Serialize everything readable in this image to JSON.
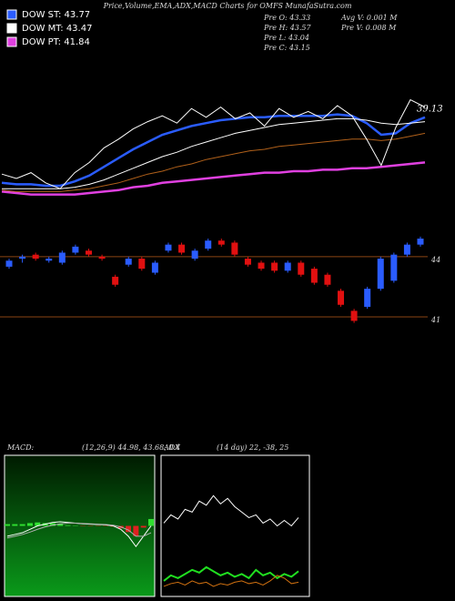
{
  "chart_data": [
    {
      "type": "line",
      "title": "Price,Volume,EMA,ADX,MACD Charts for OMFS MunafaSutra.com",
      "annotations": [
        "Pre O: 43.33",
        "Pre H: 43.57",
        "Pre L: 43.04",
        "Pre C: 43.15",
        "Avg V: 0.001 M",
        "Pre V: 0.008 M",
        "39.13"
      ],
      "ylim": [
        36,
        46
      ],
      "series": [
        {
          "name": "DOW ST: 43.77",
          "color": "#2a5cff",
          "values": [
            37.2,
            37.1,
            37.1,
            37.0,
            37.0,
            37.3,
            37.7,
            38.3,
            38.9,
            39.5,
            40.0,
            40.5,
            40.8,
            41.1,
            41.3,
            41.5,
            41.6,
            41.7,
            41.7,
            41.8,
            41.8,
            41.8,
            41.8,
            41.9,
            41.8,
            41.3,
            40.5,
            40.6,
            41.3,
            41.7
          ]
        },
        {
          "name": "DOW MT: 43.47",
          "color": "#ffffff",
          "values": [
            36.8,
            36.8,
            36.8,
            36.8,
            36.8,
            36.9,
            37.1,
            37.4,
            37.8,
            38.2,
            38.6,
            39.0,
            39.3,
            39.7,
            40.0,
            40.3,
            40.6,
            40.8,
            41.0,
            41.2,
            41.3,
            41.4,
            41.5,
            41.6,
            41.6,
            41.5,
            41.3,
            41.2,
            41.3,
            41.4
          ]
        },
        {
          "name": "DOW PT: 41.84",
          "color": "#e040e0",
          "values": [
            36.6,
            36.5,
            36.4,
            36.4,
            36.4,
            36.4,
            36.5,
            36.6,
            36.7,
            36.9,
            37.0,
            37.2,
            37.3,
            37.4,
            37.5,
            37.6,
            37.7,
            37.8,
            37.9,
            37.9,
            38.0,
            38.0,
            38.1,
            38.1,
            38.2,
            38.2,
            38.3,
            38.4,
            38.5,
            38.6
          ]
        },
        {
          "color": "#b0601a",
          "values": [
            36.7,
            36.6,
            36.6,
            36.6,
            36.6,
            36.7,
            36.8,
            37.0,
            37.2,
            37.5,
            37.8,
            38.0,
            38.3,
            38.5,
            38.8,
            39.0,
            39.2,
            39.4,
            39.5,
            39.7,
            39.8,
            39.9,
            40.0,
            40.1,
            40.2,
            40.2,
            40.1,
            40.2,
            40.4,
            40.6
          ]
        },
        {
          "color": "#ffffff",
          "values": [
            37.8,
            37.5,
            37.9,
            37.2,
            36.8,
            37.9,
            38.6,
            39.6,
            40.2,
            40.9,
            41.4,
            41.8,
            41.3,
            42.3,
            41.7,
            42.4,
            41.6,
            42.0,
            41.1,
            42.3,
            41.7,
            42.1,
            41.6,
            42.5,
            41.8,
            40.2,
            38.4,
            41.0,
            42.9,
            42.4
          ]
        }
      ]
    },
    {
      "type": "candlestick",
      "ylim": [
        40,
        45.9
      ],
      "yticks": [
        44,
        41
      ],
      "grid": true,
      "grid_color": "#8b4513",
      "up_color": "#2a5cff",
      "down_color": "#e01010",
      "open": [
        43.5,
        43.9,
        44.1,
        43.8,
        43.7,
        44.2,
        44.3,
        44.0,
        43.0,
        43.6,
        43.9,
        43.2,
        44.3,
        44.6,
        43.9,
        44.4,
        44.8,
        44.7,
        43.9,
        43.7,
        43.7,
        43.3,
        43.7,
        43.4,
        43.1,
        42.3,
        41.3,
        41.5,
        42.4,
        42.8,
        44.1,
        44.6
      ],
      "high": [
        43.9,
        44.1,
        44.2,
        44.0,
        44.3,
        44.6,
        44.4,
        44.1,
        43.1,
        44.0,
        44.0,
        43.8,
        44.7,
        44.7,
        44.4,
        44.9,
        44.9,
        44.8,
        44.0,
        43.8,
        43.8,
        43.8,
        43.8,
        43.5,
        43.2,
        42.4,
        41.4,
        42.5,
        44.0,
        44.2,
        44.7,
        45.0
      ],
      "low": [
        43.4,
        43.7,
        43.8,
        43.7,
        43.6,
        44.1,
        44.0,
        43.8,
        42.5,
        43.5,
        43.3,
        43.1,
        44.2,
        44.1,
        43.8,
        44.3,
        44.5,
        44.0,
        43.5,
        43.3,
        43.2,
        43.2,
        43.0,
        42.6,
        42.5,
        41.5,
        40.7,
        41.4,
        42.3,
        42.7,
        44.0,
        44.5
      ],
      "close": [
        43.8,
        44.0,
        43.9,
        43.9,
        44.2,
        44.5,
        44.1,
        43.9,
        42.6,
        43.9,
        43.4,
        43.7,
        44.6,
        44.2,
        44.3,
        44.8,
        44.6,
        44.1,
        43.6,
        43.4,
        43.3,
        43.7,
        43.1,
        42.7,
        42.6,
        41.6,
        40.8,
        42.4,
        43.9,
        44.1,
        44.6,
        44.9
      ]
    },
    {
      "type": "macd",
      "title": "MACD:",
      "subtitle": "(12,26,9) 44.98, 43.68, 0.4",
      "ylim": [
        -2,
        2
      ],
      "series": [
        {
          "color": "#ffffff",
          "values": [
            -0.3,
            -0.25,
            -0.2,
            -0.1,
            0.0,
            0.05,
            0.1,
            0.12,
            0.1,
            0.08,
            0.06,
            0.05,
            0.04,
            0.03,
            0.0,
            -0.1,
            -0.3,
            -0.6,
            -0.3,
            0.0
          ]
        },
        {
          "color": "#b0b0b0",
          "values": [
            -0.35,
            -0.3,
            -0.25,
            -0.18,
            -0.1,
            -0.03,
            0.02,
            0.06,
            0.08,
            0.08,
            0.07,
            0.06,
            0.05,
            0.04,
            0.02,
            -0.03,
            -0.12,
            -0.3,
            -0.3,
            -0.2
          ]
        }
      ],
      "histogram": {
        "up_color": "#30e030",
        "down_color": "#e02020",
        "values": [
          0.05,
          0.05,
          0.05,
          0.08,
          0.1,
          0.08,
          0.08,
          0.06,
          0.02,
          0.01,
          -0.01,
          -0.01,
          -0.01,
          -0.01,
          -0.02,
          -0.07,
          -0.18,
          -0.3,
          -0.05,
          0.2
        ]
      }
    },
    {
      "type": "adx",
      "title": "ADX",
      "subtitle": "(14 day) 22, -38, 25",
      "ylim": [
        0,
        100
      ],
      "series": [
        {
          "color": "#ffffff",
          "values": [
            52,
            58,
            55,
            62,
            60,
            68,
            65,
            72,
            66,
            70,
            64,
            60,
            56,
            58,
            52,
            55,
            50,
            54,
            50,
            56
          ]
        },
        {
          "color": "#20e020",
          "values": [
            10,
            14,
            12,
            15,
            18,
            16,
            20,
            17,
            14,
            16,
            13,
            15,
            12,
            18,
            14,
            16,
            12,
            15,
            13,
            17
          ]
        },
        {
          "color": "#d07010",
          "values": [
            6,
            8,
            9,
            7,
            10,
            8,
            9,
            6,
            8,
            7,
            9,
            10,
            8,
            9,
            7,
            10,
            14,
            12,
            8,
            9
          ]
        }
      ]
    }
  ]
}
